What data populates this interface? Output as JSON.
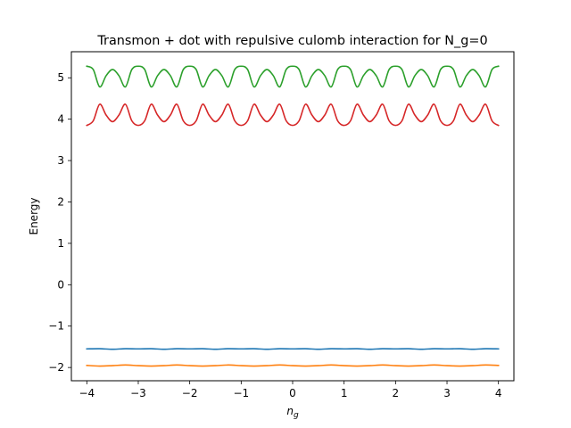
{
  "chart_data": {
    "type": "line",
    "title": "Transmon + dot with repulsive culomb interaction for N_g=0",
    "xlabel": "n",
    "xlabel_subscript": "g",
    "ylabel": "Energy",
    "xlim": [
      -4.3,
      4.3
    ],
    "ylim": [
      -2.32,
      5.63
    ],
    "grid": false,
    "legend": "none",
    "xticks": [
      -4,
      -3,
      -2,
      -1,
      0,
      1,
      2,
      3,
      4
    ],
    "xtick_labels": [
      "−4",
      "−3",
      "−2",
      "−1",
      "0",
      "1",
      "2",
      "3",
      "4"
    ],
    "yticks": [
      -2,
      -1,
      0,
      1,
      2,
      3,
      4,
      5
    ],
    "ytick_labels": [
      "−2",
      "−1",
      "0",
      "1",
      "2",
      "3",
      "4",
      "5"
    ],
    "series": [
      {
        "color": "#1f77b4",
        "x": [
          -4,
          -3.75,
          -3.5,
          -3.25,
          -3,
          -2.75,
          -2.5,
          -2.25,
          -2,
          -1.75,
          -1.5,
          -1.25,
          -1,
          -0.75,
          -0.5,
          -0.25,
          0,
          0.25,
          0.5,
          0.75,
          1,
          1.25,
          1.5,
          1.75,
          2,
          2.25,
          2.5,
          2.75,
          3,
          3.25,
          3.5,
          3.75,
          4
        ],
        "y": [
          -1.55,
          -1.545,
          -1.56,
          -1.545,
          -1.55,
          -1.545,
          -1.56,
          -1.545,
          -1.55,
          -1.545,
          -1.56,
          -1.545,
          -1.55,
          -1.545,
          -1.56,
          -1.545,
          -1.55,
          -1.545,
          -1.56,
          -1.545,
          -1.55,
          -1.545,
          -1.56,
          -1.545,
          -1.55,
          -1.545,
          -1.56,
          -1.545,
          -1.55,
          -1.545,
          -1.56,
          -1.545,
          -1.55
        ]
      },
      {
        "color": "#ff7f0e",
        "x": [
          -4,
          -3.75,
          -3.5,
          -3.25,
          -3,
          -2.75,
          -2.5,
          -2.25,
          -2,
          -1.75,
          -1.5,
          -1.25,
          -1,
          -0.75,
          -0.5,
          -0.25,
          0,
          0.25,
          0.5,
          0.75,
          1,
          1.25,
          1.5,
          1.75,
          2,
          2.25,
          2.5,
          2.75,
          3,
          3.25,
          3.5,
          3.75,
          4
        ],
        "y": [
          -1.95,
          -1.965,
          -1.955,
          -1.94,
          -1.955,
          -1.965,
          -1.955,
          -1.94,
          -1.955,
          -1.965,
          -1.955,
          -1.94,
          -1.955,
          -1.965,
          -1.955,
          -1.94,
          -1.955,
          -1.965,
          -1.955,
          -1.94,
          -1.955,
          -1.965,
          -1.955,
          -1.94,
          -1.955,
          -1.965,
          -1.955,
          -1.94,
          -1.955,
          -1.965,
          -1.955,
          -1.94,
          -1.95
        ]
      },
      {
        "color": "#2ca02c",
        "x": [
          -4,
          -3.875,
          -3.75,
          -3.625,
          -3.5,
          -3.375,
          -3.25,
          -3.125,
          -3,
          -2.875,
          -2.75,
          -2.625,
          -2.5,
          -2.375,
          -2.25,
          -2.125,
          -2,
          -1.875,
          -1.75,
          -1.625,
          -1.5,
          -1.375,
          -1.25,
          -1.125,
          -1,
          -0.875,
          -0.75,
          -0.625,
          -0.5,
          -0.375,
          -0.25,
          -0.125,
          0,
          0.125,
          0.25,
          0.375,
          0.5,
          0.625,
          0.75,
          0.875,
          1,
          1.125,
          1.25,
          1.375,
          1.5,
          1.625,
          1.75,
          1.875,
          2,
          2.125,
          2.25,
          2.375,
          2.5,
          2.625,
          2.75,
          2.875,
          3,
          3.125,
          3.25,
          3.375,
          3.5,
          3.625,
          3.75,
          3.875,
          4
        ],
        "y": [
          5.28,
          5.2,
          4.78,
          5.05,
          5.2,
          5.05,
          4.78,
          5.2,
          5.28,
          5.2,
          4.78,
          5.05,
          5.2,
          5.05,
          4.78,
          5.2,
          5.28,
          5.2,
          4.78,
          5.05,
          5.2,
          5.05,
          4.78,
          5.2,
          5.28,
          5.2,
          4.78,
          5.05,
          5.2,
          5.05,
          4.78,
          5.2,
          5.28,
          5.2,
          4.78,
          5.05,
          5.2,
          5.05,
          4.78,
          5.2,
          5.28,
          5.2,
          4.78,
          5.05,
          5.2,
          5.05,
          4.78,
          5.2,
          5.28,
          5.2,
          4.78,
          5.05,
          5.2,
          5.05,
          4.78,
          5.2,
          5.28,
          5.2,
          4.78,
          5.05,
          5.2,
          5.05,
          4.78,
          5.2,
          5.28
        ]
      },
      {
        "color": "#d62728",
        "x": [
          -4,
          -3.875,
          -3.75,
          -3.625,
          -3.5,
          -3.375,
          -3.25,
          -3.125,
          -3,
          -2.875,
          -2.75,
          -2.625,
          -2.5,
          -2.375,
          -2.25,
          -2.125,
          -2,
          -1.875,
          -1.75,
          -1.625,
          -1.5,
          -1.375,
          -1.25,
          -1.125,
          -1,
          -0.875,
          -0.75,
          -0.625,
          -0.5,
          -0.375,
          -0.25,
          -0.125,
          0,
          0.125,
          0.25,
          0.375,
          0.5,
          0.625,
          0.75,
          0.875,
          1,
          1.125,
          1.25,
          1.375,
          1.5,
          1.625,
          1.75,
          1.875,
          2,
          2.125,
          2.25,
          2.375,
          2.5,
          2.625,
          2.75,
          2.875,
          3,
          3.125,
          3.25,
          3.375,
          3.5,
          3.625,
          3.75,
          3.875,
          4
        ],
        "y": [
          3.85,
          3.96,
          4.36,
          4.1,
          3.94,
          4.1,
          4.36,
          3.96,
          3.85,
          3.96,
          4.36,
          4.1,
          3.94,
          4.1,
          4.36,
          3.96,
          3.85,
          3.96,
          4.36,
          4.1,
          3.94,
          4.1,
          4.36,
          3.96,
          3.85,
          3.96,
          4.36,
          4.1,
          3.94,
          4.1,
          4.36,
          3.96,
          3.85,
          3.96,
          4.36,
          4.1,
          3.94,
          4.1,
          4.36,
          3.96,
          3.85,
          3.96,
          4.36,
          4.1,
          3.94,
          4.1,
          4.36,
          3.96,
          3.85,
          3.96,
          4.36,
          4.1,
          3.94,
          4.1,
          4.36,
          3.96,
          3.85,
          3.96,
          4.36,
          4.1,
          3.94,
          4.1,
          4.36,
          3.96,
          3.85
        ]
      }
    ]
  }
}
